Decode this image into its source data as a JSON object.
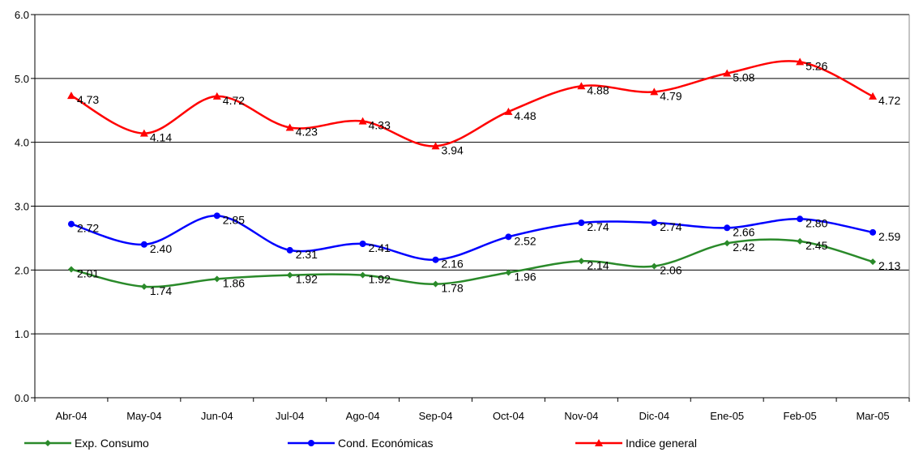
{
  "chart_data": {
    "type": "line",
    "categories": [
      "Abr-04",
      "May-04",
      "Jun-04",
      "Jul-04",
      "Ago-04",
      "Sep-04",
      "Oct-04",
      "Nov-04",
      "Dic-04",
      "Ene-05",
      "Feb-05",
      "Mar-05"
    ],
    "series": [
      {
        "name": "Exp. Consumo",
        "color": "#2a8a2a",
        "marker": "diamond",
        "values": [
          2.01,
          1.74,
          1.86,
          1.92,
          1.92,
          1.78,
          1.96,
          2.14,
          2.06,
          2.42,
          2.45,
          2.13
        ],
        "value_labels": [
          "2.01",
          "1.74",
          "1.86",
          "1.92",
          "1.92",
          "1.78",
          "1.96",
          "2.14",
          "2.06",
          "2.42",
          "2.45",
          "2.13"
        ]
      },
      {
        "name": "Cond. Económicas",
        "color": "#0000ff",
        "marker": "circle",
        "values": [
          2.72,
          2.4,
          2.85,
          2.31,
          2.41,
          2.16,
          2.52,
          2.74,
          2.74,
          2.66,
          2.8,
          2.59
        ],
        "value_labels": [
          "2.72",
          "2.40",
          "2.85",
          "2.31",
          "2.41",
          "2.16",
          "2.52",
          "2.74",
          "2.74",
          "2.66",
          "2.80",
          "2.59"
        ]
      },
      {
        "name": "Indice general",
        "color": "#ff0000",
        "marker": "triangle",
        "values": [
          4.73,
          4.14,
          4.72,
          4.23,
          4.33,
          3.94,
          4.48,
          4.88,
          4.79,
          5.08,
          5.26,
          4.72
        ],
        "value_labels": [
          "4.73",
          "4.14",
          "4.72",
          "4.23",
          "4.33",
          "3.94",
          "4.48",
          "4.88",
          "4.79",
          "5.08",
          "5.26",
          "4.72"
        ]
      }
    ],
    "ylim": [
      0,
      6
    ],
    "yticks": [
      {
        "value": 0,
        "label": "0.0"
      },
      {
        "value": 1,
        "label": "1.0"
      },
      {
        "value": 2,
        "label": "2.0"
      },
      {
        "value": 3,
        "label": "3.0"
      },
      {
        "value": 4,
        "label": "4.0"
      },
      {
        "value": 5,
        "label": "5.0"
      },
      {
        "value": 6,
        "label": "6.0"
      }
    ],
    "grid": true,
    "smooth": true,
    "legend": "bottom"
  }
}
